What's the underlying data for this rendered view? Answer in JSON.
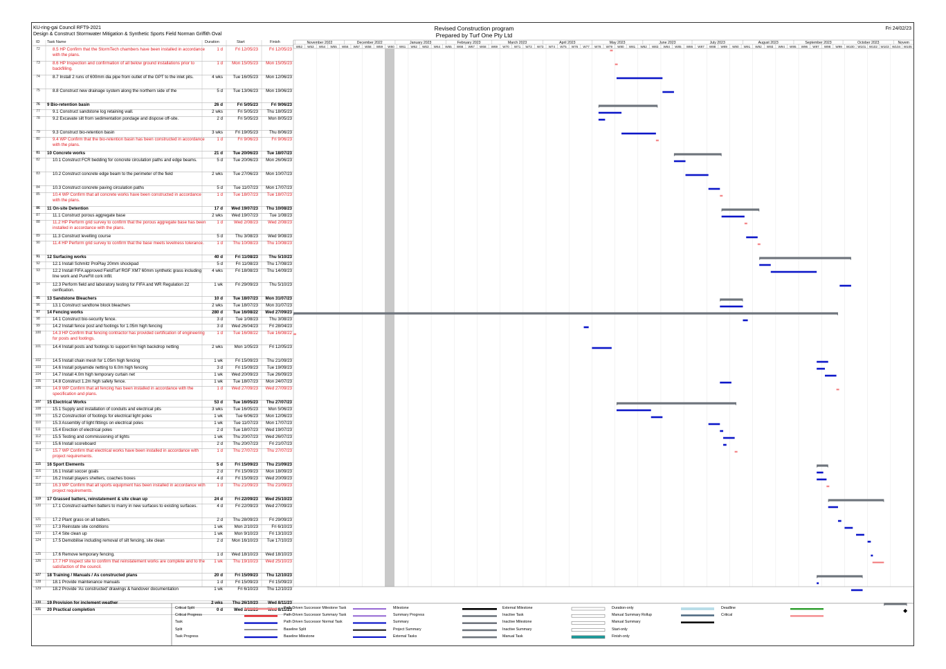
{
  "header": {
    "org": "KU-ring-gai Council RFT9-2021",
    "project": "Design & Construct Stormwater Mitigation & Synthetic Sports Field Norman Griffith Oval",
    "title": "Revised Construction program",
    "subtitle": "Prepared by Turf One Pty Ltd",
    "date": "Fri 24/02/23"
  },
  "columns": {
    "id": "ID",
    "name": "Task Name",
    "duration": "Duration",
    "start": "Start",
    "finish": "Finish"
  },
  "timeline": {
    "months": [
      "November 2022",
      "December 2022",
      "January 2023",
      "February 2023",
      "March 2023",
      "April 2023",
      "May 2023",
      "June 2023",
      "July 2023",
      "August 2023",
      "September 2023",
      "October 2023",
      "Novem"
    ],
    "weeks": [
      "W52",
      "W53",
      "W54",
      "W55",
      "W56",
      "W57",
      "W58",
      "W59",
      "W60",
      "W61",
      "W62",
      "W63",
      "W64",
      "W65",
      "W66",
      "W67",
      "W68",
      "W69",
      "W70",
      "W71",
      "W72",
      "W73",
      "W74",
      "W75",
      "W76",
      "W77",
      "W78",
      "W79",
      "W80",
      "W81",
      "W82",
      "W83",
      "W84",
      "W85",
      "W86",
      "W87",
      "W88",
      "W89",
      "W90",
      "W91",
      "W92",
      "W93",
      "W94",
      "W95",
      "W96",
      "W97",
      "W98",
      "W99",
      "W100",
      "W101",
      "W102",
      "W103",
      "W104",
      "W105"
    ]
  },
  "tasks": [
    {
      "id": "72",
      "name": "8.5 HP Confirm that the StormTech chambers have been installed in accordance with the plans.",
      "dur": "1 d",
      "start": "Fri 12/05/23",
      "finish": "Fri 12/05/23",
      "type": "crit"
    },
    {
      "id": "73",
      "name": "8.6 HP Inspection and confirmation of all below ground installations prior to backfilling.",
      "dur": "1 d",
      "start": "Mon 15/05/23",
      "finish": "Mon 15/05/23",
      "type": "crit"
    },
    {
      "id": "74",
      "name": "8.7 Install 2 runs of 600mm dia pipe from outlet of the GPT to the inlet pits.",
      "dur": "4 wks",
      "start": "Tue 16/05/23",
      "finish": "Mon 12/06/23",
      "type": "task"
    },
    {
      "id": "75",
      "name": "8.8 Construct new drainage system along the northern side of the",
      "dur": "5 d",
      "start": "Tue 13/06/23",
      "finish": "Mon 19/06/23",
      "type": "task"
    },
    {
      "id": "76",
      "name": "9 Bio-retention basin",
      "dur": "26 d",
      "start": "Fri 5/05/23",
      "finish": "Fri 9/06/23",
      "type": "summary"
    },
    {
      "id": "77",
      "name": "9.1 Construct sandstone log retaining wall.",
      "dur": "2 wks",
      "start": "Fri 5/05/23",
      "finish": "Thu 18/05/23",
      "type": "task"
    },
    {
      "id": "78",
      "name": "9.2 Excavate silt from sedimentation pondage and dispose off-site.",
      "dur": "2 d",
      "start": "Fri 5/05/23",
      "finish": "Mon 8/05/23",
      "type": "task"
    },
    {
      "id": "79",
      "name": "9.3 Construct bio-retention basin",
      "dur": "3 wks",
      "start": "Fri 19/05/23",
      "finish": "Thu 8/06/23",
      "type": "task"
    },
    {
      "id": "80",
      "name": "9.4 WP Confirm that the bio-retention basin has been constructed in accordance with the plans.",
      "dur": "1 d",
      "start": "Fri 9/06/23",
      "finish": "Fri 9/06/23",
      "type": "crit"
    },
    {
      "id": "81",
      "name": "10 Concrete works",
      "dur": "21 d",
      "start": "Tue 20/06/23",
      "finish": "Tue 18/07/23",
      "type": "summary"
    },
    {
      "id": "82",
      "name": "10.1 Construct FCR bedding for concrete circulation paths and edge beams.",
      "dur": "5 d",
      "start": "Tue 20/06/23",
      "finish": "Mon 26/06/23",
      "type": "task"
    },
    {
      "id": "83",
      "name": "10.2 Construct concrete edge beam to the perimeter of the field",
      "dur": "2 wks",
      "start": "Tue 27/06/23",
      "finish": "Mon 10/07/23",
      "type": "task"
    },
    {
      "id": "84",
      "name": "10.3 Construct concrete paving circulation paths",
      "dur": "5 d",
      "start": "Tue 11/07/23",
      "finish": "Mon 17/07/23",
      "type": "task"
    },
    {
      "id": "85",
      "name": "10.4 WP Confirm that all concrete works have been constructed in accordance with the plans.",
      "dur": "1 d",
      "start": "Tue 18/07/23",
      "finish": "Tue 18/07/23",
      "type": "crit"
    },
    {
      "id": "86",
      "name": "11 On-site Detention",
      "dur": "17 d",
      "start": "Wed 19/07/23",
      "finish": "Thu 10/08/23",
      "type": "summary"
    },
    {
      "id": "87",
      "name": "11.1 Construct porous aggregate base",
      "dur": "2 wks",
      "start": "Wed 19/07/23",
      "finish": "Tue 1/08/23",
      "type": "task"
    },
    {
      "id": "88",
      "name": "11.2 HP Perform grid survey to confirm that the porous aggregate base has been installed in accordance with the plans.",
      "dur": "1 d",
      "start": "Wed 2/08/23",
      "finish": "Wed 2/08/23",
      "type": "crit"
    },
    {
      "id": "89",
      "name": "11.3 Construct levelling course",
      "dur": "5 d",
      "start": "Thu 3/08/23",
      "finish": "Wed 9/08/23",
      "type": "task"
    },
    {
      "id": "90",
      "name": "11.4 HP Perform grid survey to confirm that the base meets levelness tolerance.",
      "dur": "1 d",
      "start": "Thu 10/08/23",
      "finish": "Thu 10/08/23",
      "type": "crit"
    },
    {
      "id": "91",
      "name": "12 Surfacing works",
      "dur": "40 d",
      "start": "Fri 11/08/23",
      "finish": "Thu 5/10/23",
      "type": "summary"
    },
    {
      "id": "92",
      "name": "12.1 Install Schmitz ProPlay 20mm shockpad",
      "dur": "5 d",
      "start": "Fri 11/08/23",
      "finish": "Thu 17/08/23",
      "type": "task"
    },
    {
      "id": "93",
      "name": "12.2 Install FIFA approved FieldTurf RGF XM7 60mm synthetic grass including line work and PureFill cork infill.",
      "dur": "4 wks",
      "start": "Fri 18/08/23",
      "finish": "Thu 14/09/23",
      "type": "task"
    },
    {
      "id": "94",
      "name": "12.3 Perform field and laboratory testing for FIFA and WR Regulation 22 cerification.",
      "dur": "1 wk",
      "start": "Fri 29/09/23",
      "finish": "Thu 5/10/23",
      "type": "task"
    },
    {
      "id": "95",
      "name": "13 Sandstone Bleachers",
      "dur": "10 d",
      "start": "Tue 18/07/23",
      "finish": "Mon 31/07/23",
      "type": "summary"
    },
    {
      "id": "96",
      "name": "13.1 Construct sandtone block bleachers",
      "dur": "2 wks",
      "start": "Tue 18/07/23",
      "finish": "Mon 31/07/23",
      "type": "task"
    },
    {
      "id": "97",
      "name": "14 Fencing works",
      "dur": "280 d",
      "start": "Tue 16/08/22",
      "finish": "Wed 27/09/23",
      "type": "summary"
    },
    {
      "id": "98",
      "name": "14.1 Construct bio-security fence.",
      "dur": "3 d",
      "start": "Tue 1/08/23",
      "finish": "Thu 3/08/23",
      "type": "task"
    },
    {
      "id": "99",
      "name": "14.2 Install fence post and footings for 1.05m high fencing",
      "dur": "3 d",
      "start": "Wed 26/04/23",
      "finish": "Fri 28/04/23",
      "type": "task"
    },
    {
      "id": "100",
      "name": "14.3 HP Confirm that fencing contractor has provided certification of engineering for posts and footings.",
      "dur": "1 d",
      "start": "Tue 16/08/22",
      "finish": "Tue 16/08/22",
      "type": "crit"
    },
    {
      "id": "101",
      "name": "14.4 Install posts and footings to support 6m high backdrop netting",
      "dur": "2 wks",
      "start": "Mon 1/05/23",
      "finish": "Fri 12/05/23",
      "type": "task"
    },
    {
      "id": "102",
      "name": "14.5 Install chain mesh for 1.05m high fencing",
      "dur": "1 wk",
      "start": "Fri 15/09/23",
      "finish": "Thu 21/09/23",
      "type": "task"
    },
    {
      "id": "103",
      "name": "14.6 Install polyamide netting to 6.0m high fencing",
      "dur": "3 d",
      "start": "Fri 15/09/23",
      "finish": "Tue 19/09/23",
      "type": "task"
    },
    {
      "id": "104",
      "name": "14.7 Install 4.0m high temporary curtain net",
      "dur": "1 wk",
      "start": "Wed 20/09/23",
      "finish": "Tue 26/09/23",
      "type": "task"
    },
    {
      "id": "105",
      "name": "14.8 Construct 1.2m high safety fence.",
      "dur": "1 wk",
      "start": "Tue 18/07/23",
      "finish": "Mon 24/07/23",
      "type": "task"
    },
    {
      "id": "106",
      "name": "14.9 WP Confirm that all fencing has been installed in accordance with the specification and plans.",
      "dur": "1 d",
      "start": "Wed 27/09/23",
      "finish": "Wed 27/09/23",
      "type": "crit"
    },
    {
      "id": "107",
      "name": "15 Electrical Works",
      "dur": "53 d",
      "start": "Tue 16/05/23",
      "finish": "Thu 27/07/23",
      "type": "summary"
    },
    {
      "id": "108",
      "name": "15.1 Supply and installation of conduits and electrical pits",
      "dur": "3 wks",
      "start": "Tue 16/05/23",
      "finish": "Mon 5/06/23",
      "type": "task"
    },
    {
      "id": "109",
      "name": "15.2 Construction of footings for electrical light poles",
      "dur": "1 wk",
      "start": "Tue 6/06/23",
      "finish": "Mon 12/06/23",
      "type": "task"
    },
    {
      "id": "110",
      "name": "15.3 Assembly of light fittings on electrical poles",
      "dur": "1 wk",
      "start": "Tue 11/07/23",
      "finish": "Mon 17/07/23",
      "type": "task"
    },
    {
      "id": "111",
      "name": "15.4 Erection of electrical poles",
      "dur": "2 d",
      "start": "Tue 18/07/23",
      "finish": "Wed 19/07/23",
      "type": "task"
    },
    {
      "id": "112",
      "name": "15.5 Testing and commissioning of lights",
      "dur": "1 wk",
      "start": "Thu 20/07/23",
      "finish": "Wed 26/07/23",
      "type": "task"
    },
    {
      "id": "113",
      "name": "15.6 Install scoreboard",
      "dur": "2 d",
      "start": "Thu 20/07/23",
      "finish": "Fri 21/07/23",
      "type": "task"
    },
    {
      "id": "114",
      "name": "15.7 WP Confirm that electrical works have been installed in accordance with project requirements.",
      "dur": "1 d",
      "start": "Thu 27/07/23",
      "finish": "Thu 27/07/23",
      "type": "crit"
    },
    {
      "id": "115",
      "name": "16 Sport Elements",
      "dur": "5 d",
      "start": "Fri 15/09/23",
      "finish": "Thu 21/09/23",
      "type": "summary"
    },
    {
      "id": "116",
      "name": "16.1 Install soccer goals",
      "dur": "2 d",
      "start": "Fri 15/09/23",
      "finish": "Mon 18/09/23",
      "type": "task"
    },
    {
      "id": "117",
      "name": "16.2 Install players shelters, coaches boxes",
      "dur": "4 d",
      "start": "Fri 15/09/23",
      "finish": "Wed 20/09/23",
      "type": "task"
    },
    {
      "id": "118",
      "name": "16.3 WP Confirm that all sports equipment has been installed in accordance with project requirements.",
      "dur": "1 d",
      "start": "Thu 21/09/23",
      "finish": "Thu 21/09/23",
      "type": "crit"
    },
    {
      "id": "119",
      "name": "17 Grassed batters, reinstatement & site clean up",
      "dur": "24 d",
      "start": "Fri 22/09/23",
      "finish": "Wed 25/10/23",
      "type": "summary"
    },
    {
      "id": "120",
      "name": "17.1 Construct earthen batters to marry in new surfaces to existing surfaces.",
      "dur": "4 d",
      "start": "Fri 22/09/23",
      "finish": "Wed 27/09/23",
      "type": "task"
    },
    {
      "id": "121",
      "name": "17.2 Plant grass on all batters.",
      "dur": "2 d",
      "start": "Thu 28/09/23",
      "finish": "Fri 29/09/23",
      "type": "task"
    },
    {
      "id": "122",
      "name": "17.3 Reinstate site conditions",
      "dur": "1 wk",
      "start": "Mon 2/10/23",
      "finish": "Fri 6/10/23",
      "type": "task"
    },
    {
      "id": "123",
      "name": "17.4 Site clean up",
      "dur": "1 wk",
      "start": "Mon 9/10/23",
      "finish": "Fri 13/10/23",
      "type": "task"
    },
    {
      "id": "124",
      "name": "17.5 Demobilise including removal of silt fencing, site clean",
      "dur": "2 d",
      "start": "Mon 16/10/23",
      "finish": "Tue 17/10/23",
      "type": "task"
    },
    {
      "id": "125",
      "name": "17.6 Remove temporary fencing.",
      "dur": "1 d",
      "start": "Wed 18/10/23",
      "finish": "Wed 18/10/23",
      "type": "task"
    },
    {
      "id": "126",
      "name": "17.7 HP Inspect site to confirm that reinstatement works are complete and to the satisfaction of the council.",
      "dur": "1 wk",
      "start": "Thu 19/10/23",
      "finish": "Wed 25/10/23",
      "type": "crit"
    },
    {
      "id": "127",
      "name": "18 Training / Manuals / As constructed plans",
      "dur": "20 d",
      "start": "Fri 15/09/23",
      "finish": "Thu 12/10/23",
      "type": "summary"
    },
    {
      "id": "128",
      "name": "18.1 Provide maintenance manuals",
      "dur": "1 d",
      "start": "Fri 15/09/23",
      "finish": "Fri 15/09/23",
      "type": "task"
    },
    {
      "id": "129",
      "name": "18.2 Provide 'As constructed' drawings & handover documentation",
      "dur": "1 wk",
      "start": "Fri 6/10/23",
      "finish": "Thu 12/10/23",
      "type": "task"
    },
    {
      "id": "130",
      "name": "19 Provision for inclement weather",
      "dur": "2 wks",
      "start": "Thu 26/10/23",
      "finish": "Wed 8/11/23",
      "type": "summary"
    },
    {
      "id": "131",
      "name": "20 Practical completion",
      "dur": "0 d",
      "start": "Wed 8/11/23",
      "finish": "Wed 8/11/23",
      "type": "summary"
    }
  ],
  "legend": [
    [
      "Critical Split",
      "Critical Progress",
      "Task",
      "Split",
      "Task Progress"
    ],
    [
      "Path Driven Successor Milestone Task",
      "Path Driven Successor Summary Task",
      "Path Driven Successor Normal Task",
      "Baseline Split",
      "Baseline Milestone"
    ],
    [
      "Milestone",
      "Summary Progress",
      "Summary",
      "Project Summary",
      "External Tasks"
    ],
    [
      "External Milestone",
      "Inactive Task",
      "Inactive Milestone",
      "Inactive Summary",
      "Manual Task"
    ],
    [
      "Duration-only",
      "Manual Summary Rollup",
      "Manual Summary",
      "Start-only",
      "Finish-only"
    ],
    [
      "Deadline",
      "Critical"
    ]
  ],
  "colors": {
    "task": "#0b16c8",
    "critical": "#e0191f",
    "critical_bar": "#f4898b",
    "summary": "#6e747c"
  }
}
